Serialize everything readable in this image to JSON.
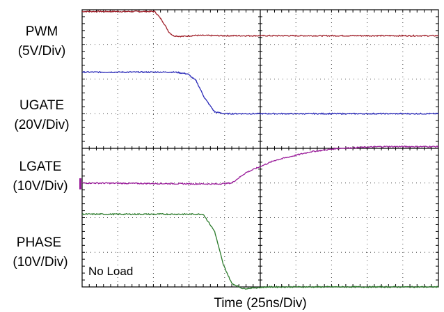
{
  "chart_data": {
    "type": "line",
    "title": "",
    "xlabel": "Time  (25ns/Div)",
    "x_unit": "ns",
    "x_range": [
      0,
      250
    ],
    "divisions": {
      "x": 10,
      "y": 8
    },
    "grid": true,
    "annotation": "No Load",
    "channels": [
      {
        "name": "PWM",
        "scale": "(5V/Div)",
        "color": "#a0202a",
        "div_range": [
          7.0,
          8.0
        ],
        "points": [
          [
            0,
            7.95
          ],
          [
            51,
            7.95
          ],
          [
            56,
            7.7
          ],
          [
            61,
            7.35
          ],
          [
            64,
            7.25
          ],
          [
            70,
            7.23
          ],
          [
            80,
            7.26
          ],
          [
            100,
            7.25
          ],
          [
            250,
            7.25
          ]
        ]
      },
      {
        "name": "UGATE",
        "scale": "(20V/Div)",
        "color": "#2a2ab8",
        "div_range": [
          5.0,
          6.0
        ],
        "points": [
          [
            0,
            6.2
          ],
          [
            65,
            6.2
          ],
          [
            74,
            6.15
          ],
          [
            80,
            5.95
          ],
          [
            86,
            5.45
          ],
          [
            93,
            5.05
          ],
          [
            100,
            5.0
          ],
          [
            250,
            5.0
          ]
        ]
      },
      {
        "name": "LGATE",
        "scale": "(10V/Div)",
        "color": "#9a1c9a",
        "div_range": [
          3.0,
          4.0
        ],
        "points": [
          [
            0,
            3.0
          ],
          [
            95,
            2.97
          ],
          [
            105,
            3.0
          ],
          [
            115,
            3.3
          ],
          [
            135,
            3.65
          ],
          [
            160,
            3.9
          ],
          [
            180,
            4.0
          ],
          [
            210,
            4.05
          ],
          [
            250,
            4.05
          ]
        ]
      },
      {
        "name": "PHASE",
        "scale": "(10V/Div)",
        "color": "#2a7a2a",
        "div_range": [
          0.0,
          1.0
        ],
        "points": [
          [
            0,
            2.1
          ],
          [
            85,
            2.1
          ],
          [
            93,
            1.6
          ],
          [
            99,
            0.65
          ],
          [
            105,
            0.1
          ],
          [
            113,
            -0.05
          ],
          [
            130,
            0.0
          ],
          [
            250,
            0.0
          ]
        ]
      }
    ]
  }
}
